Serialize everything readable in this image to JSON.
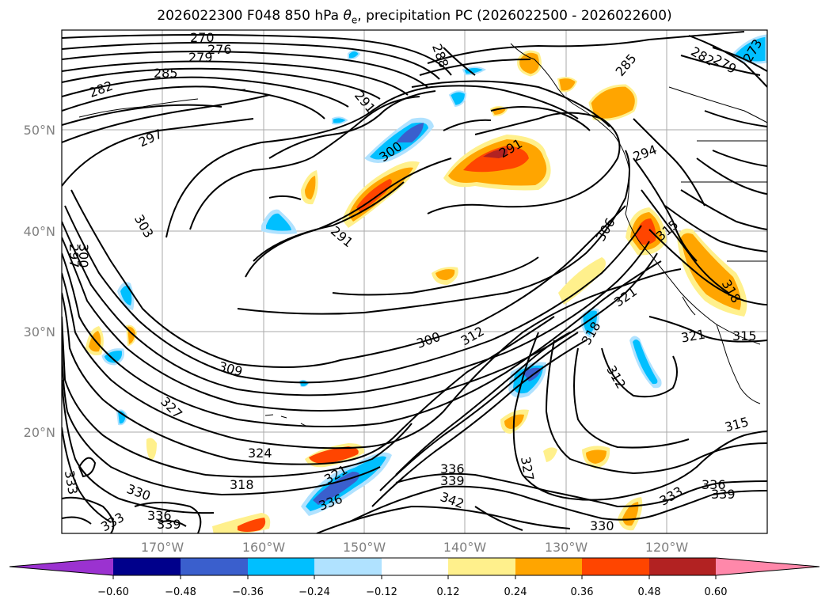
{
  "title": {
    "prefix": "2026022300 F048 850 hPa ",
    "symbol": "θ",
    "subscript": "e",
    "suffix": ", precipitation PC (2026022500 - 2026022600)"
  },
  "map": {
    "lat_labels": [
      "50°N",
      "40°N",
      "30°N",
      "20°N"
    ],
    "lon_labels": [
      "170°W",
      "160°W",
      "150°W",
      "140°W",
      "130°W",
      "120°W"
    ],
    "gridlines": true,
    "contour_color": "#000000",
    "contour_labels": [
      "270",
      "276",
      "279",
      "282",
      "285",
      "288",
      "285",
      "282",
      "279",
      "273",
      "297",
      "291",
      "300",
      "291",
      "303",
      "300",
      "297",
      "291",
      "300",
      "312",
      "306",
      "294",
      "315",
      "318",
      "321",
      "321",
      "315",
      "318",
      "312",
      "309",
      "327",
      "324",
      "318",
      "321",
      "336",
      "330",
      "333",
      "336",
      "339",
      "336",
      "339",
      "342",
      "327",
      "333",
      "330",
      "336",
      "339",
      "315",
      "333"
    ]
  },
  "colorbar": {
    "ticks": [
      "−0.60",
      "−0.48",
      "−0.36",
      "−0.24",
      "−0.12",
      "0.12",
      "0.24",
      "0.36",
      "0.48",
      "0.60"
    ],
    "colors": [
      "#9b32d0",
      "#00008b",
      "#3a5fcd",
      "#00bfff",
      "#b0e2ff",
      "#ffffff",
      "#fff08c",
      "#ffa500",
      "#ff4500",
      "#b22222",
      "#ff88aa"
    ]
  }
}
